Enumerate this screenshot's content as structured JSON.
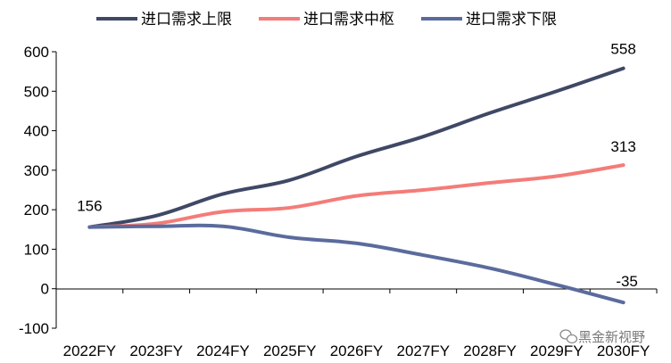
{
  "chart_data": {
    "type": "line",
    "title": "",
    "xlabel": "",
    "ylabel": "",
    "categories": [
      "2022FY",
      "2023FY",
      "2024FY",
      "2025FY",
      "2026FY",
      "2027FY",
      "2028FY",
      "2029FY",
      "2030FY"
    ],
    "ylim": [
      -100,
      600
    ],
    "yticks": [
      -100,
      0,
      100,
      200,
      300,
      400,
      500,
      600
    ],
    "grid": false,
    "legend_position": "top",
    "series": [
      {
        "name": "进口需求上限",
        "color": "#3f4865",
        "values": [
          156,
          185,
          240,
          275,
          335,
          385,
          445,
          500,
          558
        ]
      },
      {
        "name": "进口需求中枢",
        "color": "#f47c78",
        "values": [
          156,
          165,
          195,
          205,
          235,
          250,
          268,
          285,
          313
        ]
      },
      {
        "name": "进口需求下限",
        "color": "#5b6b9d",
        "values": [
          156,
          158,
          158,
          130,
          115,
          85,
          52,
          10,
          -35
        ]
      }
    ],
    "annotations": [
      {
        "text": "156",
        "category": "2022FY",
        "value": 156
      },
      {
        "text": "558",
        "category": "2030FY",
        "value": 558
      },
      {
        "text": "313",
        "category": "2030FY",
        "value": 313
      },
      {
        "text": "-35",
        "category": "2030FY",
        "value": -35
      }
    ]
  },
  "watermark": {
    "text": "黑金新视野"
  }
}
